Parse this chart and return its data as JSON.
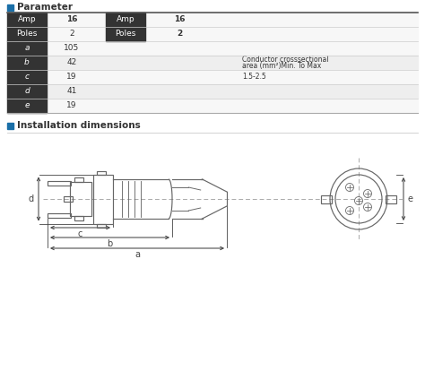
{
  "bg_color": "#ffffff",
  "row_bg_dark": "#333333",
  "row_bg_light": "#f7f7f7",
  "row_bg_mid": "#eeeeee",
  "text_light": "#ffffff",
  "text_dark": "#333333",
  "blue_color": "#1a6fa8",
  "line_color": "#666666",
  "dashed_color": "#aaaaaa",
  "title1": "Parameter",
  "title2": "Installation dimensions",
  "table_rows": [
    {
      "label": "Amp",
      "val1": "16",
      "label2": "Amp",
      "val2": "16",
      "note": "",
      "bold": true
    },
    {
      "label": "Poles",
      "val1": "2",
      "label2": "Poles",
      "val2": "2",
      "note": "",
      "bold": false
    },
    {
      "label": "a",
      "val1": "105",
      "label2": "",
      "val2": "",
      "note": "",
      "bold": false
    },
    {
      "label": "b",
      "val1": "42",
      "label2": "",
      "val2": "",
      "note": "Conductor crosssectional\narea (mm²)Min. To Max",
      "bold": false
    },
    {
      "label": "c",
      "val1": "19",
      "label2": "",
      "val2": "",
      "note": "1.5-2.5",
      "bold": false
    },
    {
      "label": "d",
      "val1": "41",
      "label2": "",
      "val2": "",
      "note": "",
      "bold": false
    },
    {
      "label": "e",
      "val1": "19",
      "label2": "",
      "val2": "",
      "note": "",
      "bold": false
    }
  ]
}
